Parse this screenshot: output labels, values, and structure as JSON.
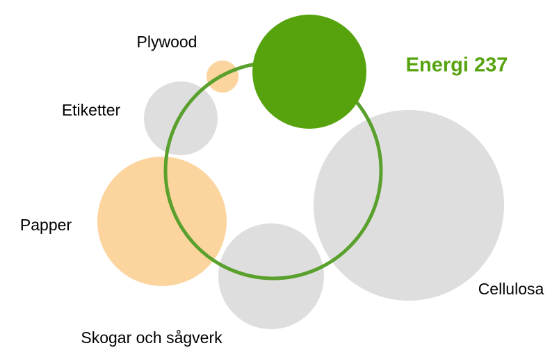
{
  "nodes": [
    {
      "label": "Plywood"
    },
    {
      "label": "Etiketter"
    },
    {
      "label": "Papper"
    },
    {
      "label": "Skogar och sågverk"
    },
    {
      "label": "Cellulosa"
    },
    {
      "label": "Energi 237"
    }
  ]
}
